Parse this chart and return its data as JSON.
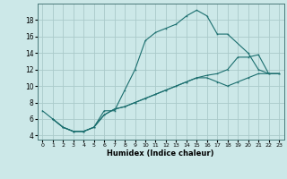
{
  "xlabel": "Humidex (Indice chaleur)",
  "bg_color": "#cce8e8",
  "grid_color": "#aacaca",
  "line_color": "#1a6e6e",
  "xlim": [
    -0.5,
    23.5
  ],
  "ylim": [
    3.5,
    20.0
  ],
  "xticks": [
    0,
    1,
    2,
    3,
    4,
    5,
    6,
    7,
    8,
    9,
    10,
    11,
    12,
    13,
    14,
    15,
    16,
    17,
    18,
    19,
    20,
    21,
    22,
    23
  ],
  "yticks": [
    4,
    6,
    8,
    10,
    12,
    14,
    16,
    18
  ],
  "line1_x": [
    0,
    1,
    2,
    3,
    4,
    5,
    6,
    7,
    8,
    9,
    10,
    11,
    12,
    13,
    14,
    15,
    16,
    17,
    18,
    20,
    21,
    22,
    23
  ],
  "line1_y": [
    7.0,
    6.0,
    5.0,
    4.5,
    4.5,
    5.0,
    7.0,
    7.0,
    9.5,
    12.0,
    15.5,
    16.5,
    17.0,
    17.5,
    18.5,
    19.2,
    18.5,
    16.3,
    16.3,
    14.0,
    12.0,
    11.5,
    11.5
  ],
  "line2_x": [
    1,
    2,
    3,
    4,
    5,
    6,
    7,
    8,
    9,
    10,
    11,
    12,
    13,
    14,
    15,
    16,
    17,
    18,
    19,
    20,
    21,
    22,
    23
  ],
  "line2_y": [
    6.0,
    5.0,
    4.5,
    4.5,
    5.0,
    6.5,
    7.2,
    7.5,
    8.0,
    8.5,
    9.0,
    9.5,
    10.0,
    10.5,
    11.0,
    11.3,
    11.5,
    12.0,
    13.5,
    13.5,
    13.8,
    11.5,
    11.5
  ],
  "line3_x": [
    1,
    2,
    3,
    4,
    5,
    6,
    7,
    8,
    9,
    10,
    11,
    12,
    13,
    14,
    15,
    16,
    17,
    18,
    19,
    20,
    21,
    22,
    23
  ],
  "line3_y": [
    6.0,
    5.0,
    4.5,
    4.5,
    5.0,
    6.5,
    7.2,
    7.5,
    8.0,
    8.5,
    9.0,
    9.5,
    10.0,
    10.5,
    11.0,
    11.0,
    10.5,
    10.0,
    10.5,
    11.0,
    11.5,
    11.5,
    11.5
  ]
}
